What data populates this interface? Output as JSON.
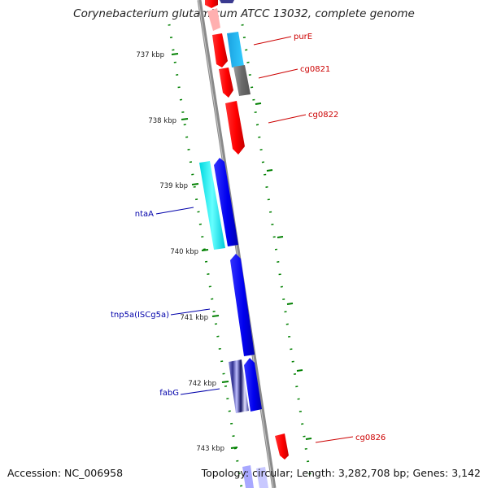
{
  "title": "Corynebacterium glutamicum ATCC 13032, complete genome",
  "footer": {
    "accession": "Accession: NC_006958",
    "summary": "Topology: circular; Length: 3,282,708 bp; Genes: 3,142"
  },
  "scale_ticks": [
    {
      "label": "737 kbp",
      "kbp": 737
    },
    {
      "label": "738 kbp",
      "kbp": 738
    },
    {
      "label": "739 kbp",
      "kbp": 739
    },
    {
      "label": "740 kbp",
      "kbp": 740
    },
    {
      "label": "741 kbp",
      "kbp": 741
    },
    {
      "label": "742 kbp",
      "kbp": 742
    },
    {
      "label": "743 kbp",
      "kbp": 743
    }
  ],
  "gene_labels": [
    {
      "label": "purE",
      "strand": "forward"
    },
    {
      "label": "cg0821",
      "strand": "forward"
    },
    {
      "label": "cg0822",
      "strand": "forward"
    },
    {
      "label": "ntaA",
      "strand": "reverse"
    },
    {
      "label": "tnp5a(ISCg5a)",
      "strand": "reverse"
    },
    {
      "label": "fabG",
      "strand": "reverse"
    },
    {
      "label": "cg0826",
      "strand": "forward"
    }
  ],
  "colors": {
    "forward_gene": "#ff0000",
    "reverse_gene": "#0000ee",
    "forward_label": "#cc0000",
    "reverse_label": "#0000aa",
    "backbone": "#888888",
    "scale_tick": "#008000"
  }
}
